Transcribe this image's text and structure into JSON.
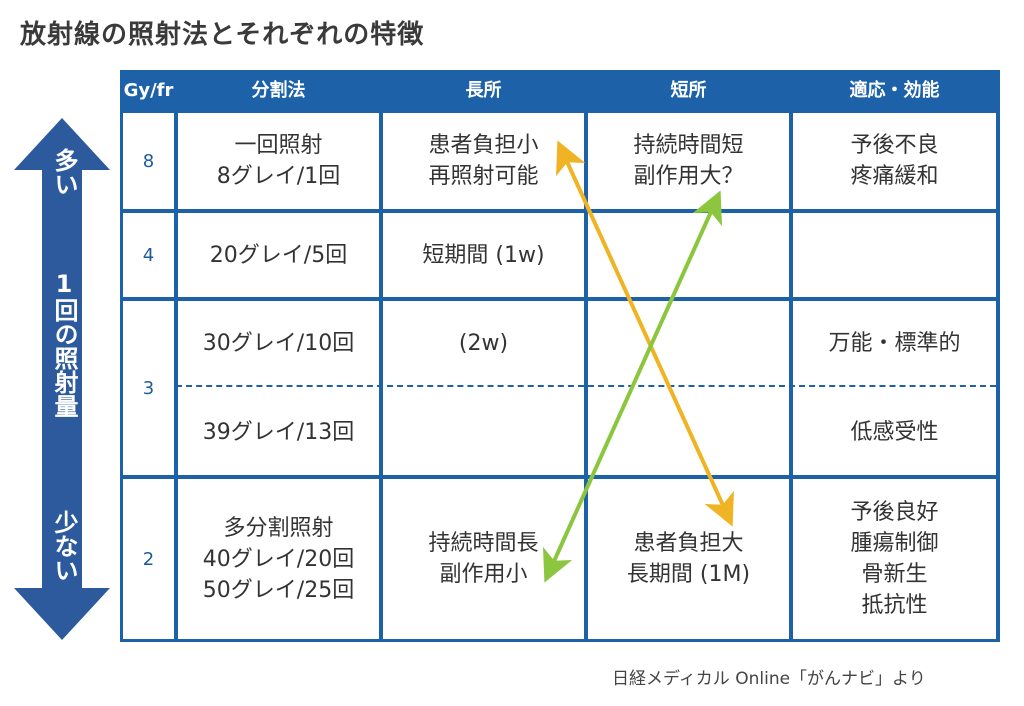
{
  "title": "放射線の照射法とそれぞれの特徴",
  "side_arrow": {
    "top_label": "多い",
    "middle_label": "1回の照射量",
    "bottom_label": "少ない",
    "color": "#2c5a9c"
  },
  "table": {
    "headers": [
      "Gy/fr",
      "分割法",
      "長所",
      "短所",
      "適応・効能"
    ],
    "gy_values": [
      "8",
      "4",
      "3",
      "2"
    ],
    "rows": [
      {
        "method": [
          "一回照射",
          "8グレイ/1回"
        ],
        "merits": [
          "患者負担小",
          "再照射可能"
        ],
        "demerits": [
          "持続時間短",
          "副作用大？"
        ],
        "indications": [
          "予後不良",
          "疼痛緩和"
        ]
      },
      {
        "method": [
          "20グレイ/5回"
        ],
        "merits": [
          "短期間 (1w)"
        ],
        "demerits": [],
        "indications": []
      },
      {
        "method": [
          "30グレイ/10回"
        ],
        "merits": [
          "(2w)"
        ],
        "demerits": [],
        "indications": [
          "万能・標準的"
        ]
      },
      {
        "method": [
          "39グレイ/13回"
        ],
        "merits": [],
        "demerits": [],
        "indications": [
          "低感受性"
        ]
      },
      {
        "method": [
          "多分割照射",
          "40グレイ/20回",
          "50グレイ/25回"
        ],
        "merits": [
          "持続時間長",
          "副作用小"
        ],
        "demerits": [
          "患者負担大",
          "長期間 (1M)"
        ],
        "indications": [
          "予後良好",
          "腫瘍制御",
          "骨新生",
          "抵抗性"
        ]
      }
    ]
  },
  "colors": {
    "table_border": "#1d62a8",
    "arrow_yellow": "#f0b323",
    "arrow_green": "#8cc63f"
  },
  "source": "日経メディカル Online「がんナビ」より"
}
